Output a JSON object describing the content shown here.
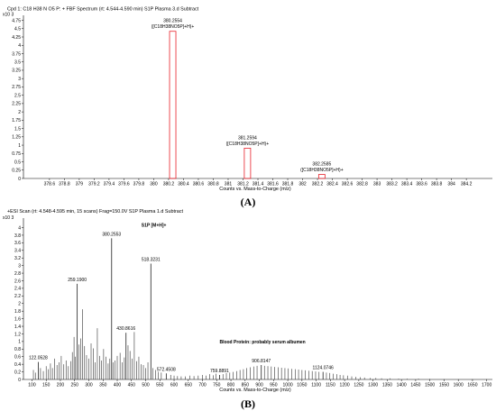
{
  "panels": [
    {
      "letter": "A",
      "letter_display": "(A)",
      "title": "Cpd 1: C18 H38 N O5 P: + FBF Spectrum (rt: 4.544-4.590 min) S1P Plasma 3.d  Subtract",
      "xlabel": "Counts vs. Mass-to-Charge (m/z)",
      "y_exponent": "x10 3"
    },
    {
      "letter": "B",
      "letter_display": "(B)",
      "title": "+ESI Scan (rt: 4.548-4.595 min, 15 scans) Frag=150.0V S1P Plasma 1.d  Subtract",
      "xlabel": "Counts vs. Mass-to-Charge (m/z)",
      "y_exponent": "x10 3"
    }
  ],
  "chart_data": [
    {
      "type": "bar",
      "title": "Cpd 1: C18 H38 N O5 P: + FBF Spectrum (rt: 4.544-4.590 min) S1P Plasma 3.d  Subtract",
      "xlabel": "Counts vs. Mass-to-Charge (m/z)",
      "ylabel": "x10 3",
      "xlim": [
        378.25,
        384.55
      ],
      "ylim": [
        0,
        4.9
      ],
      "xticks": [
        "378.6",
        "378.8",
        "379",
        "379.2",
        "379.4",
        "379.6",
        "379.8",
        "380",
        "380.2",
        "380.4",
        "380.6",
        "380.8",
        "381",
        "381.2",
        "381.4",
        "381.6",
        "381.8",
        "382",
        "382.2",
        "382.4",
        "382.6",
        "382.8",
        "383",
        "383.2",
        "383.4",
        "383.6",
        "383.8",
        "384",
        "384.2"
      ],
      "yticks": [
        "0",
        "0.25",
        "0.5",
        "0.75",
        "1",
        "1.25",
        "1.5",
        "1.75",
        "2",
        "2.25",
        "2.5",
        "2.75",
        "3",
        "3.25",
        "3.5",
        "3.75",
        "4",
        "4.25",
        "4.5",
        "4.75"
      ],
      "grid": false,
      "peaks": [
        {
          "mz": 380.2554,
          "value": 4.42,
          "label": "380.2554",
          "formula": "([C18H38NO5P]+H)+"
        },
        {
          "mz": 381.2594,
          "value": 0.91,
          "label": "381.2594",
          "formula": "([C18H38NO5P]+H)+"
        },
        {
          "mz": 382.2585,
          "value": 0.12,
          "label": "382.2585",
          "formula": "([C18H38NO5P]+H)+"
        }
      ]
    },
    {
      "type": "bar",
      "title": "+ESI Scan (rt: 4.548-4.595 min, 15 scans) Frag=150.0V S1P Plasma 1.d  Subtract",
      "xlabel": "Counts vs. Mass-to-Charge (m/z)",
      "ylabel": "x10 3",
      "xlim": [
        70,
        1720
      ],
      "ylim": [
        0,
        4.25
      ],
      "xticks": [
        "100",
        "150",
        "200",
        "250",
        "300",
        "350",
        "400",
        "450",
        "500",
        "550",
        "600",
        "650",
        "700",
        "750",
        "800",
        "850",
        "900",
        "950",
        "1000",
        "1050",
        "1100",
        "1150",
        "1200",
        "1250",
        "1300",
        "1350",
        "1400",
        "1450",
        "1500",
        "1550",
        "1600",
        "1650",
        "1700"
      ],
      "yticks": [
        "0",
        "0.2",
        "0.4",
        "0.6",
        "0.8",
        "1",
        "1.2",
        "1.4",
        "1.6",
        "1.8",
        "2",
        "2.2",
        "2.4",
        "2.6",
        "2.8",
        "3",
        "3.2",
        "3.4",
        "3.6",
        "3.8",
        "4"
      ],
      "grid": false,
      "labeled_peaks": [
        {
          "mz": 122.0528,
          "value": 0.46,
          "label": "122.0528"
        },
        {
          "mz": 259.19,
          "value": 2.52,
          "label": "259.1900"
        },
        {
          "mz": 380.2553,
          "value": 3.72,
          "label": "380.2553"
        },
        {
          "mz": 430.8616,
          "value": 1.23,
          "label": "430.8616"
        },
        {
          "mz": 518.3231,
          "value": 3.05,
          "label": "518.3231"
        },
        {
          "mz": 572.4508,
          "value": 0.16,
          "label": "572.4508"
        },
        {
          "mz": 759.8891,
          "value": 0.12,
          "label": "759.8891"
        },
        {
          "mz": 906.8147,
          "value": 0.38,
          "label": "906.8147"
        },
        {
          "mz": 1124.0746,
          "value": 0.2,
          "label": "1124.0746"
        }
      ],
      "minor_peaks": [
        {
          "mz": 105,
          "value": 0.25
        },
        {
          "mz": 112,
          "value": 0.18
        },
        {
          "mz": 130,
          "value": 0.3
        },
        {
          "mz": 140,
          "value": 0.22
        },
        {
          "mz": 150,
          "value": 0.35
        },
        {
          "mz": 158,
          "value": 0.27
        },
        {
          "mz": 165,
          "value": 0.42
        },
        {
          "mz": 172,
          "value": 0.3
        },
        {
          "mz": 180,
          "value": 0.55
        },
        {
          "mz": 188,
          "value": 0.38
        },
        {
          "mz": 195,
          "value": 0.45
        },
        {
          "mz": 203,
          "value": 0.62
        },
        {
          "mz": 212,
          "value": 0.4
        },
        {
          "mz": 220,
          "value": 0.5
        },
        {
          "mz": 228,
          "value": 0.35
        },
        {
          "mz": 236,
          "value": 0.48
        },
        {
          "mz": 242,
          "value": 0.72
        },
        {
          "mz": 248,
          "value": 1.12
        },
        {
          "mz": 253,
          "value": 0.6
        },
        {
          "mz": 265,
          "value": 0.92
        },
        {
          "mz": 272,
          "value": 1.08
        },
        {
          "mz": 278,
          "value": 1.85
        },
        {
          "mz": 285,
          "value": 0.88
        },
        {
          "mz": 292,
          "value": 0.64
        },
        {
          "mz": 300,
          "value": 0.55
        },
        {
          "mz": 308,
          "value": 0.95
        },
        {
          "mz": 316,
          "value": 0.82
        },
        {
          "mz": 322,
          "value": 0.45
        },
        {
          "mz": 330,
          "value": 1.35
        },
        {
          "mz": 338,
          "value": 0.62
        },
        {
          "mz": 345,
          "value": 0.5
        },
        {
          "mz": 352,
          "value": 0.8
        },
        {
          "mz": 360,
          "value": 0.6
        },
        {
          "mz": 368,
          "value": 0.42
        },
        {
          "mz": 374,
          "value": 0.55
        },
        {
          "mz": 385,
          "value": 0.45
        },
        {
          "mz": 392,
          "value": 0.5
        },
        {
          "mz": 400,
          "value": 0.62
        },
        {
          "mz": 410,
          "value": 0.7
        },
        {
          "mz": 418,
          "value": 0.45
        },
        {
          "mz": 425,
          "value": 0.58
        },
        {
          "mz": 438,
          "value": 0.9
        },
        {
          "mz": 445,
          "value": 0.75
        },
        {
          "mz": 452,
          "value": 0.55
        },
        {
          "mz": 460,
          "value": 1.25
        },
        {
          "mz": 468,
          "value": 0.48
        },
        {
          "mz": 476,
          "value": 0.6
        },
        {
          "mz": 484,
          "value": 0.4
        },
        {
          "mz": 492,
          "value": 0.38
        },
        {
          "mz": 500,
          "value": 0.3
        },
        {
          "mz": 508,
          "value": 0.45
        },
        {
          "mz": 526,
          "value": 0.3
        },
        {
          "mz": 535,
          "value": 0.25
        },
        {
          "mz": 545,
          "value": 0.2
        },
        {
          "mz": 555,
          "value": 0.18
        },
        {
          "mz": 588,
          "value": 0.12
        },
        {
          "mz": 600,
          "value": 0.1
        },
        {
          "mz": 612,
          "value": 0.09
        },
        {
          "mz": 625,
          "value": 0.08
        },
        {
          "mz": 640,
          "value": 0.08
        },
        {
          "mz": 655,
          "value": 0.1
        },
        {
          "mz": 670,
          "value": 0.09
        },
        {
          "mz": 685,
          "value": 0.1
        },
        {
          "mz": 700,
          "value": 0.12
        },
        {
          "mz": 712,
          "value": 0.1
        },
        {
          "mz": 725,
          "value": 0.14
        },
        {
          "mz": 738,
          "value": 0.11
        },
        {
          "mz": 748,
          "value": 0.15
        },
        {
          "mz": 772,
          "value": 0.14
        },
        {
          "mz": 784,
          "value": 0.17
        },
        {
          "mz": 796,
          "value": 0.18
        },
        {
          "mz": 808,
          "value": 0.2
        },
        {
          "mz": 820,
          "value": 0.22
        },
        {
          "mz": 832,
          "value": 0.25
        },
        {
          "mz": 844,
          "value": 0.27
        },
        {
          "mz": 856,
          "value": 0.3
        },
        {
          "mz": 868,
          "value": 0.32
        },
        {
          "mz": 880,
          "value": 0.34
        },
        {
          "mz": 892,
          "value": 0.36
        },
        {
          "mz": 918,
          "value": 0.36
        },
        {
          "mz": 930,
          "value": 0.35
        },
        {
          "mz": 942,
          "value": 0.34
        },
        {
          "mz": 954,
          "value": 0.33
        },
        {
          "mz": 966,
          "value": 0.32
        },
        {
          "mz": 978,
          "value": 0.31
        },
        {
          "mz": 990,
          "value": 0.3
        },
        {
          "mz": 1002,
          "value": 0.29
        },
        {
          "mz": 1014,
          "value": 0.28
        },
        {
          "mz": 1026,
          "value": 0.27
        },
        {
          "mz": 1038,
          "value": 0.26
        },
        {
          "mz": 1050,
          "value": 0.25
        },
        {
          "mz": 1062,
          "value": 0.24
        },
        {
          "mz": 1074,
          "value": 0.23
        },
        {
          "mz": 1086,
          "value": 0.22
        },
        {
          "mz": 1098,
          "value": 0.21
        },
        {
          "mz": 1110,
          "value": 0.2
        },
        {
          "mz": 1136,
          "value": 0.18
        },
        {
          "mz": 1148,
          "value": 0.17
        },
        {
          "mz": 1160,
          "value": 0.15
        },
        {
          "mz": 1172,
          "value": 0.14
        },
        {
          "mz": 1184,
          "value": 0.12
        },
        {
          "mz": 1196,
          "value": 0.11
        },
        {
          "mz": 1210,
          "value": 0.1
        },
        {
          "mz": 1225,
          "value": 0.08
        },
        {
          "mz": 1240,
          "value": 0.07
        },
        {
          "mz": 1255,
          "value": 0.06
        },
        {
          "mz": 1270,
          "value": 0.05
        },
        {
          "mz": 1290,
          "value": 0.04
        },
        {
          "mz": 1310,
          "value": 0.04
        },
        {
          "mz": 1330,
          "value": 0.03
        },
        {
          "mz": 1360,
          "value": 0.03
        },
        {
          "mz": 1390,
          "value": 0.02
        },
        {
          "mz": 1420,
          "value": 0.02
        },
        {
          "mz": 1460,
          "value": 0.02
        },
        {
          "mz": 1500,
          "value": 0.015
        },
        {
          "mz": 1550,
          "value": 0.01
        },
        {
          "mz": 1600,
          "value": 0.01
        },
        {
          "mz": 1650,
          "value": 0.01
        },
        {
          "mz": 1700,
          "value": 0.01
        }
      ],
      "annotations": [
        {
          "text": "S1P [M+H]+",
          "mz": 380.2553
        },
        {
          "text": "Blood Protein: probably serum albumen"
        }
      ]
    }
  ]
}
